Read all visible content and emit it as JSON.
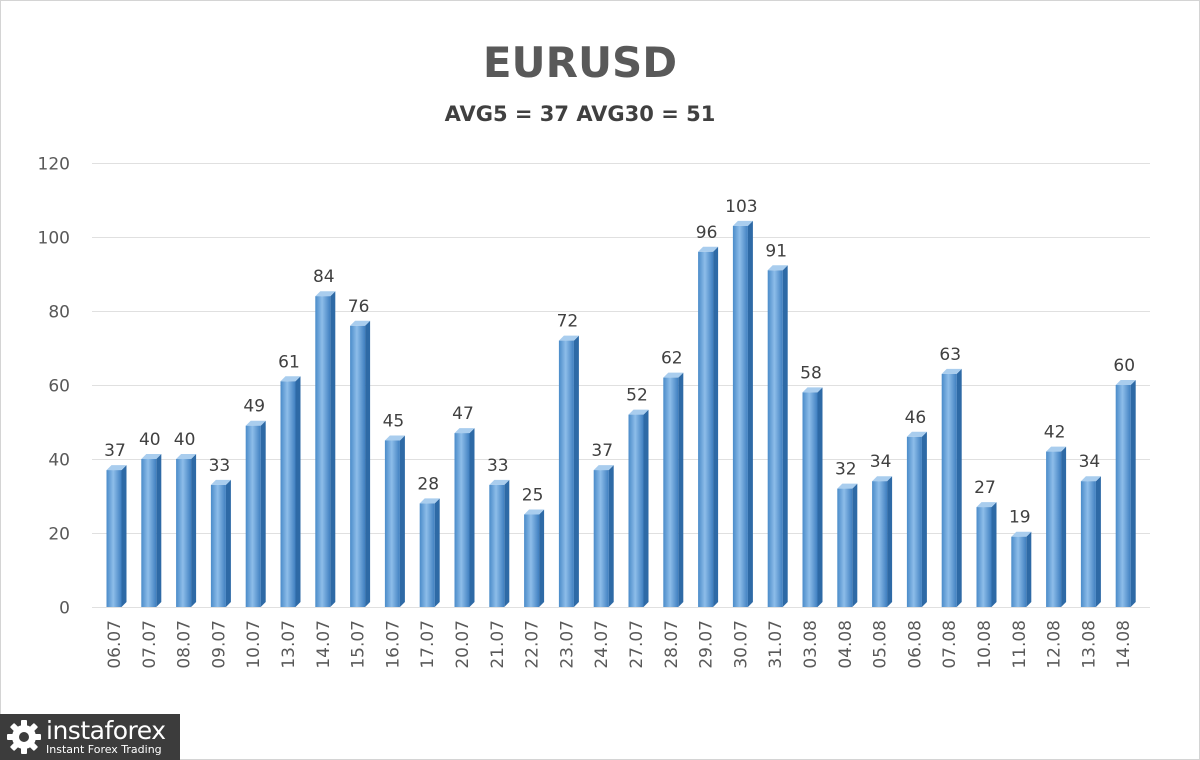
{
  "chart_data": {
    "type": "bar",
    "title": "EURUSD",
    "subtitle": "AVG5 = 37 AVG30 = 51",
    "categories": [
      "06.07",
      "07.07",
      "08.07",
      "09.07",
      "10.07",
      "13.07",
      "14.07",
      "15.07",
      "16.07",
      "17.07",
      "20.07",
      "21.07",
      "22.07",
      "23.07",
      "24.07",
      "27.07",
      "28.07",
      "29.07",
      "30.07",
      "31.07",
      "03.08",
      "04.08",
      "05.08",
      "06.08",
      "07.08",
      "10.08",
      "11.08",
      "12.08",
      "13.08",
      "14.08"
    ],
    "values": [
      37,
      40,
      40,
      33,
      49,
      61,
      84,
      76,
      45,
      28,
      47,
      33,
      25,
      72,
      37,
      52,
      62,
      96,
      103,
      91,
      58,
      32,
      34,
      46,
      63,
      27,
      19,
      42,
      34,
      60
    ],
    "ylim": [
      0,
      120
    ],
    "yticks": [
      0,
      20,
      40,
      60,
      80,
      100,
      120
    ],
    "grid": true,
    "legend": "none",
    "bar_color": "#5b9bd5"
  },
  "watermark": {
    "brand": "instaforex",
    "tagline": "Instant Forex Trading"
  }
}
